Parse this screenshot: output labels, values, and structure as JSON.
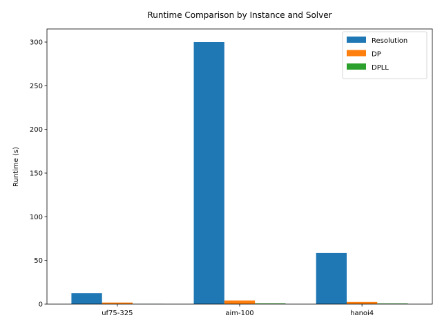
{
  "chart_data": {
    "type": "bar",
    "title": "Runtime Comparison by Instance and Solver",
    "xlabel": "",
    "ylabel": "Runtime (s)",
    "categories": [
      "uf75-325",
      "aim-100",
      "hanoi4"
    ],
    "series": [
      {
        "name": "Resolution",
        "color": "#1f77b4",
        "values": [
          12.5,
          300,
          58.5
        ]
      },
      {
        "name": "DP",
        "color": "#ff7f0e",
        "values": [
          1.8,
          4.2,
          2.5
        ]
      },
      {
        "name": "DPLL",
        "color": "#2ca02c",
        "values": [
          0.2,
          0.8,
          0.7
        ]
      }
    ],
    "ylim": [
      0,
      315
    ],
    "yticks": [
      0,
      50,
      100,
      150,
      200,
      250,
      300
    ],
    "grid": false,
    "legend_position": "top-right"
  }
}
